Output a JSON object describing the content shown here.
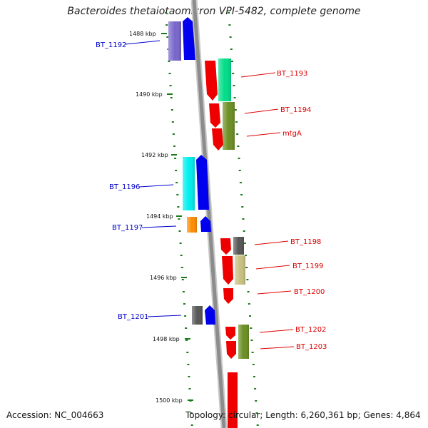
{
  "title": "Bacteroides thetaiotaomicron VPI-5482, complete genome",
  "footer": {
    "accession": "Accession: NC_004663",
    "summary": "Topology: circular; Length: 6,260,361 bp; Genes: 4,864"
  },
  "colors": {
    "backbone": "#8c8c8c",
    "tick": "#1a7a1a",
    "left_label": "#0000cc",
    "right_label": "#dd0000"
  },
  "scale": {
    "unit": "kbp",
    "labels": [
      "1488 kbp",
      "1490 kbp",
      "1492 kbp",
      "1494 kbp",
      "1496 kbp",
      "1498 kbp",
      "1500 kbp"
    ]
  },
  "genes_left": [
    {
      "label": "BT_1192",
      "kbp": 1488.4
    },
    {
      "label": "BT_1196",
      "kbp": 1492.9
    },
    {
      "label": "BT_1197",
      "kbp": 1494.4
    },
    {
      "label": "BT_1201",
      "kbp": 1497.3
    }
  ],
  "genes_right": [
    {
      "label": "BT_1193",
      "kbp": 1489.3
    },
    {
      "label": "BT_1194",
      "kbp": 1490.5
    },
    {
      "label": "mtgA",
      "kbp": 1491.2
    },
    {
      "label": "BT_1198",
      "kbp": 1495.2
    },
    {
      "label": "BT_1199",
      "kbp": 1495.9
    },
    {
      "label": "BT_1200",
      "kbp": 1496.6
    },
    {
      "label": "BT_1202",
      "kbp": 1497.9
    },
    {
      "label": "BT_1203",
      "kbp": 1498.5
    }
  ]
}
